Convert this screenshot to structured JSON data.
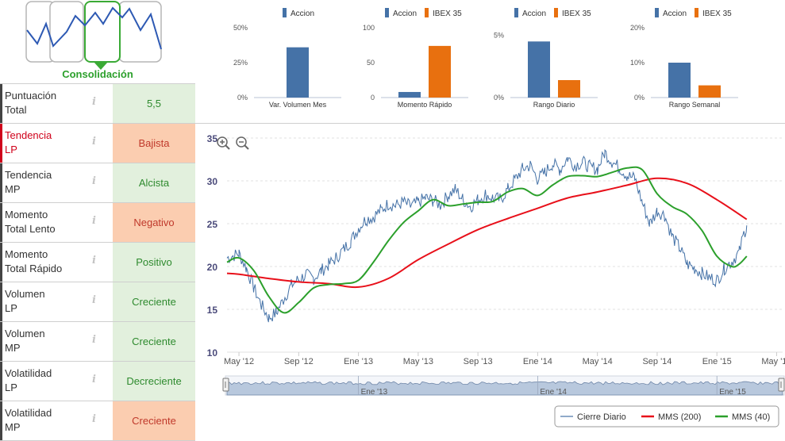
{
  "pattern": {
    "label": "Consolidación"
  },
  "indicators": [
    {
      "name_line1": "Puntuación",
      "name_line2": "Total",
      "value": "5,5",
      "status": "green",
      "highlight": false
    },
    {
      "name_line1": "Tendencia",
      "name_line2": "LP",
      "value": "Bajista",
      "status": "orange",
      "highlight": true
    },
    {
      "name_line1": "Tendencia",
      "name_line2": "MP",
      "value": "Alcista",
      "status": "green",
      "highlight": false
    },
    {
      "name_line1": "Momento",
      "name_line2": "Total Lento",
      "value": "Negativo",
      "status": "orange",
      "highlight": false
    },
    {
      "name_line1": "Momento",
      "name_line2": "Total Rápido",
      "value": "Positivo",
      "status": "green",
      "highlight": false
    },
    {
      "name_line1": "Volumen",
      "name_line2": "LP",
      "value": "Creciente",
      "status": "green",
      "highlight": false
    },
    {
      "name_line1": "Volumen",
      "name_line2": "MP",
      "value": "Creciente",
      "status": "green",
      "highlight": false
    },
    {
      "name_line1": "Volatilidad",
      "name_line2": "LP",
      "value": "Decreciente",
      "status": "green",
      "highlight": false
    },
    {
      "name_line1": "Volatilidad",
      "name_line2": "MP",
      "value": "Creciente",
      "status": "orange",
      "highlight": false
    }
  ],
  "info_glyph": "i",
  "colors": {
    "accion": "#4572a7",
    "ibex": "#e8700f",
    "green": "#2ca02c",
    "red": "#e8101a",
    "navigator": "#b8c8dd"
  },
  "chart_data": [
    {
      "type": "bar",
      "title": "Var. Volumen Mes",
      "legend": [
        "Accion"
      ],
      "categories": [
        "Var. Volumen Mes"
      ],
      "series": [
        {
          "name": "Accion",
          "values": [
            36
          ]
        }
      ],
      "yticks": [
        "0%",
        "25%",
        "50%"
      ],
      "ylim": [
        0,
        50
      ]
    },
    {
      "type": "bar",
      "title": "Momento Rápido",
      "legend": [
        "Accion",
        "IBEX 35"
      ],
      "categories": [
        "Momento Rápido"
      ],
      "series": [
        {
          "name": "Accion",
          "values": [
            8
          ]
        },
        {
          "name": "IBEX 35",
          "values": [
            74
          ]
        }
      ],
      "yticks": [
        "0",
        "50",
        "100"
      ],
      "ylim": [
        0,
        100
      ]
    },
    {
      "type": "bar",
      "title": "Rango Diario",
      "legend": [
        "Accion",
        "IBEX 35"
      ],
      "categories": [
        "Rango Diario"
      ],
      "series": [
        {
          "name": "Accion",
          "values": [
            4.5
          ]
        },
        {
          "name": "IBEX 35",
          "values": [
            1.4
          ]
        }
      ],
      "yticks": [
        "0%",
        "5%"
      ],
      "ylim": [
        0,
        5.6
      ]
    },
    {
      "type": "bar",
      "title": "Rango Semanal",
      "legend": [
        "Accion",
        "IBEX 35"
      ],
      "categories": [
        "Rango Semanal"
      ],
      "series": [
        {
          "name": "Accion",
          "values": [
            10
          ]
        },
        {
          "name": "IBEX 35",
          "values": [
            3.5
          ]
        }
      ],
      "yticks": [
        "0%",
        "10%",
        "20%"
      ],
      "ylim": [
        0,
        20
      ]
    },
    {
      "type": "line",
      "title": "",
      "ylim": [
        10,
        35
      ],
      "yticks": [
        "10",
        "15",
        "20",
        "25",
        "30",
        "35"
      ],
      "x_labels": [
        "May '12",
        "Sep '12",
        "Ene '13",
        "May '13",
        "Sep '13",
        "Ene '14",
        "May '14",
        "Sep '14",
        "Ene '15",
        "May '15"
      ],
      "navigator_labels": [
        "Ene '13",
        "Ene '14",
        "Ene '15"
      ],
      "x_months": [
        0,
        4,
        8,
        12,
        16,
        20,
        24,
        28,
        32,
        36
      ],
      "series": [
        {
          "name": "Cierre Diario",
          "month": [
            -0.8,
            0,
            0.5,
            1,
            1.5,
            2,
            2.5,
            3,
            3.5,
            4,
            4.5,
            5,
            5.5,
            6,
            6.5,
            7,
            7.5,
            8,
            8.5,
            9,
            9.5,
            10,
            10.5,
            11,
            11.5,
            12,
            12.5,
            13,
            13.5,
            14,
            14.5,
            15,
            15.5,
            16,
            16.5,
            17,
            17.5,
            18,
            18.5,
            19,
            19.5,
            20,
            20.5,
            21,
            21.5,
            22,
            22.5,
            23,
            23.5,
            24,
            24.5,
            25,
            25.5,
            26,
            26.5,
            27,
            27.5,
            28,
            28.5,
            29,
            29.5,
            30,
            30.5,
            31,
            31.5,
            32,
            32.5,
            33,
            33.5,
            33.8,
            34
          ],
          "values": [
            21,
            21.5,
            19.8,
            17.5,
            15.5,
            14,
            14.6,
            16.2,
            17.8,
            18.5,
            19,
            18.6,
            19.5,
            20.2,
            21,
            22,
            23,
            24.5,
            25.5,
            25.8,
            26.6,
            27.3,
            27.1,
            27.5,
            27,
            27.5,
            28,
            27.7,
            27.2,
            28.3,
            29,
            27.8,
            27,
            27.8,
            28.4,
            28,
            27.8,
            29,
            30.2,
            31.4,
            31.8,
            30.2,
            31,
            32,
            31.3,
            32.7,
            31.8,
            32.2,
            31.6,
            31.4,
            33.3,
            32.2,
            31.5,
            30.6,
            30.3,
            27.5,
            25,
            26.5,
            26,
            23.5,
            22.2,
            20.3,
            19.8,
            19.2,
            18.7,
            18.4,
            19.8,
            20.6,
            21.7,
            23.8,
            24.8
          ]
        },
        {
          "name": "MMS (200)",
          "month": [
            -0.8,
            0,
            2,
            4,
            6,
            8,
            10,
            12,
            14,
            16,
            18,
            20,
            22,
            24,
            26,
            28,
            30,
            32,
            34
          ],
          "values": [
            19.2,
            19.1,
            18.6,
            18.2,
            18.0,
            17.6,
            18.6,
            20.8,
            22.6,
            24.3,
            25.6,
            26.8,
            28,
            28.7,
            29.5,
            30.3,
            29.7,
            27.8,
            25.5
          ]
        },
        {
          "name": "MMS (40)",
          "month": [
            -0.8,
            0,
            1,
            2,
            3,
            4,
            5,
            6,
            7,
            8,
            9,
            10,
            11,
            12,
            13,
            14,
            15,
            16,
            17,
            18,
            19,
            20,
            21,
            22,
            23,
            24,
            25,
            26,
            27,
            28,
            29,
            30,
            31,
            32,
            33,
            33.5,
            34
          ],
          "values": [
            20.5,
            21,
            19.5,
            16.5,
            14.6,
            15.8,
            17.5,
            17.9,
            18,
            18.4,
            20.5,
            23,
            25.1,
            26.5,
            27.8,
            27.1,
            27.3,
            27.5,
            27.6,
            28.7,
            29.1,
            28.3,
            29.5,
            30.5,
            30.6,
            30.5,
            31,
            31.5,
            31.3,
            28.5,
            27,
            26.1,
            24.2,
            21.2,
            20,
            20.3,
            21.2
          ]
        }
      ]
    }
  ],
  "legend_main": [
    "Cierre Diario",
    "MMS (200)",
    "MMS (40)"
  ]
}
